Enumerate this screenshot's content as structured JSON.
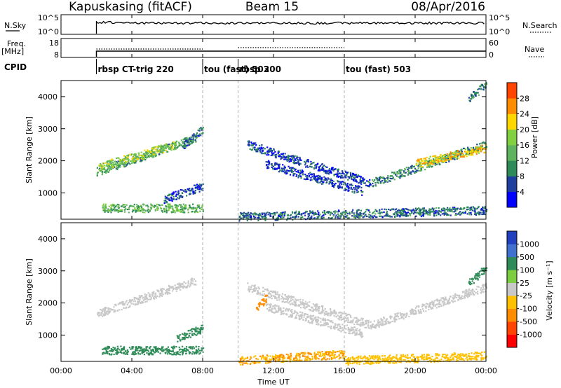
{
  "header": {
    "station": "Kapuskasing (fitACF)",
    "beam": "Beam 15",
    "date": "08/Apr/2016"
  },
  "left_labels": {
    "nsky": "N.Sky",
    "freq": "Freq.",
    "freq_unit": "[MHz]",
    "cpid": "CPID"
  },
  "right_labels": {
    "nsearch": "N.Search",
    "nave": "Nave"
  },
  "nsky_panel": {
    "ticks_left": [
      "10^5",
      "10^0"
    ],
    "ticks_right": [
      "10^5",
      "10^0"
    ]
  },
  "freq_panel": {
    "ticks_left": [
      "18",
      "8"
    ],
    "ticks_right": [
      "60",
      "0"
    ]
  },
  "cpid_segments": [
    {
      "start": 2.0,
      "label": "rbsp CT-trig 220"
    },
    {
      "start": 8.0,
      "label": "tou (fast) 503"
    },
    {
      "start": 10.0,
      "label": "rbsp 200"
    },
    {
      "start": 16.0,
      "label": "tou (fast) 503"
    }
  ],
  "colors": {
    "power": [
      "#0000ff",
      "#1f3fa0",
      "#2e8b57",
      "#5fb35f",
      "#80d040",
      "#ffd700",
      "#ff8c00",
      "#ff4500",
      "#ff0000"
    ],
    "velocity": [
      "#2040c0",
      "#4070d0",
      "#2e8b57",
      "#7ccd40",
      "#c8c8c8",
      "#ffc000",
      "#ff8c00",
      "#ff4500",
      "#ff0000"
    ]
  },
  "colorbars": {
    "power": {
      "label": "Power [dB]",
      "ticks": [
        "4",
        "8",
        "12",
        "16",
        "20",
        "24",
        "28"
      ]
    },
    "velocity": {
      "label": "Velocity [m s⁻¹]",
      "ticks": [
        "-1000",
        "-500",
        "-100",
        "-25",
        "25",
        "100",
        "500",
        "1000"
      ]
    }
  },
  "chart_data": {
    "type": "heatmap",
    "xlabel": "Time UT",
    "ylabel": "Slant Range [km]",
    "x_ticks": [
      "00:00",
      "04:00",
      "08:00",
      "12:00",
      "16:00",
      "20:00",
      "00:00"
    ],
    "y_ticks": [
      "1000",
      "2000",
      "3000",
      "4000"
    ],
    "xlim_hours": [
      0,
      24
    ],
    "ylim_km": [
      180,
      4500
    ],
    "boundaries_hours": [
      8,
      10,
      16
    ],
    "panels": [
      {
        "name": "Power [dB]",
        "features": [
          {
            "t0": 2.0,
            "t1": 7.6,
            "r0": 1650,
            "r1": 2700,
            "value": 12
          },
          {
            "t0": 2.1,
            "t1": 6.5,
            "r0": 1800,
            "r1": 2500,
            "value": 18
          },
          {
            "t0": 6.8,
            "t1": 8.0,
            "r0": 2400,
            "r1": 3000,
            "value": 8
          },
          {
            "t0": 10.5,
            "t1": 17.5,
            "r0": 2500,
            "r1": 1300,
            "value": 6
          },
          {
            "t0": 11.5,
            "t1": 17.0,
            "r0": 1900,
            "r1": 1050,
            "value": 5
          },
          {
            "t0": 17.5,
            "t1": 24.0,
            "r0": 1300,
            "r1": 2500,
            "value": 10
          },
          {
            "t0": 20.0,
            "t1": 24.0,
            "r0": 1900,
            "r1": 2400,
            "value": 22
          },
          {
            "t0": 5.8,
            "t1": 8.0,
            "r0": 800,
            "r1": 1200,
            "value": 6
          },
          {
            "t0": 2.3,
            "t1": 8.0,
            "r0": 520,
            "r1": 520,
            "value": 14
          },
          {
            "t0": 10.0,
            "t1": 24.0,
            "r0": 250,
            "r1": 450,
            "value": 8
          },
          {
            "t0": 23.0,
            "t1": 24.0,
            "r0": 3900,
            "r1": 4400,
            "value": 10
          }
        ]
      },
      {
        "name": "Velocity",
        "features": [
          {
            "t0": 2.0,
            "t1": 7.6,
            "r0": 1650,
            "r1": 2700,
            "value": 0
          },
          {
            "t0": 10.5,
            "t1": 17.5,
            "r0": 2500,
            "r1": 1300,
            "value": 0
          },
          {
            "t0": 11.5,
            "t1": 17.0,
            "r0": 1900,
            "r1": 1050,
            "value": 0
          },
          {
            "t0": 17.5,
            "t1": 24.0,
            "r0": 1300,
            "r1": 2500,
            "value": 0
          },
          {
            "t0": 11.0,
            "t1": 11.6,
            "r0": 1800,
            "r1": 2150,
            "value": -300
          },
          {
            "t0": 2.3,
            "t1": 8.0,
            "r0": 520,
            "r1": 520,
            "value": 200
          },
          {
            "t0": 6.5,
            "t1": 8.0,
            "r0": 900,
            "r1": 1200,
            "value": 150
          },
          {
            "t0": 10.0,
            "t1": 16.0,
            "r0": 200,
            "r1": 400,
            "value": -100
          },
          {
            "t0": 16.0,
            "t1": 24.0,
            "r0": 200,
            "r1": 350,
            "value": -50
          },
          {
            "t0": 23.0,
            "t1": 24.0,
            "r0": 2600,
            "r1": 3100,
            "value": 150
          }
        ]
      }
    ]
  }
}
